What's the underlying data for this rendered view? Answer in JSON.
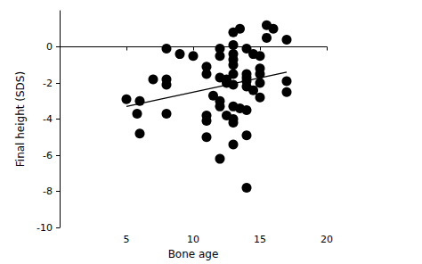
{
  "chart_data": {
    "type": "scatter",
    "xlabel": "Bone age",
    "ylabel": "Final height (SDS)",
    "xlim": [
      0,
      20
    ],
    "xticks": [
      5,
      10,
      15,
      20
    ],
    "ylim": [
      -10,
      2
    ],
    "yticks": [
      -10,
      -8,
      -6,
      -4,
      -2,
      0
    ],
    "grid": false,
    "series": [
      {
        "type": "scatter",
        "color": "#000000",
        "marker": "circle",
        "x": [
          5,
          6,
          5.8,
          6,
          7,
          8,
          8,
          8,
          8,
          9,
          10,
          11,
          11,
          11,
          11,
          11,
          11.5,
          12,
          12,
          12,
          12,
          12,
          12,
          12.5,
          12.5,
          12.5,
          13,
          13,
          13,
          13,
          13,
          13,
          13,
          13,
          13,
          13,
          13,
          13.5,
          13.5,
          14,
          14,
          14,
          14,
          14,
          14,
          14,
          14,
          14.5,
          14.5,
          15,
          15,
          15,
          15,
          15,
          15.5,
          15.5,
          16,
          17,
          17,
          17
        ],
        "values": [
          -2.9,
          -3.0,
          -3.7,
          -4.8,
          -1.8,
          -0.1,
          -1.8,
          -2.1,
          -3.7,
          -0.4,
          -0.5,
          -1.1,
          -1.5,
          -3.8,
          -4.1,
          -5.0,
          -2.7,
          -0.1,
          -0.5,
          -1.7,
          -3.0,
          -3.3,
          -6.2,
          -1.8,
          -2.0,
          -3.8,
          0.8,
          0.1,
          -0.4,
          -0.7,
          -1.0,
          -1.5,
          -2.1,
          -3.3,
          -4.0,
          -4.2,
          -5.4,
          1.0,
          -3.4,
          -0.1,
          -1.5,
          -1.7,
          -1.9,
          -2.2,
          -3.5,
          -4.9,
          -7.8,
          -0.4,
          -2.4,
          -0.5,
          -1.2,
          -1.5,
          -2.0,
          -2.8,
          1.2,
          0.5,
          1.0,
          0.4,
          -1.9,
          -2.5
        ]
      },
      {
        "type": "line",
        "color": "#000000",
        "line_style": "solid",
        "x": [
          5,
          17
        ],
        "values": [
          -3.3,
          -1.4
        ]
      }
    ]
  }
}
